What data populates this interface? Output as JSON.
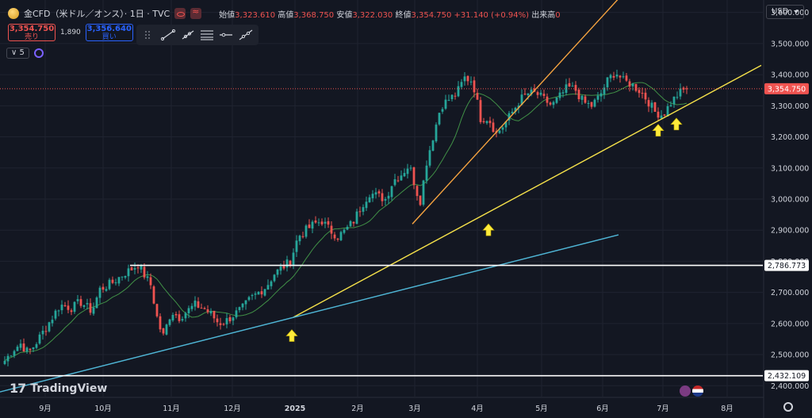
{
  "header": {
    "symbol": "金CFD（米ドル／オンス）· 1日 · TVC",
    "open_label": "始値",
    "open": "3,323.610",
    "high_label": "高値",
    "high": "3,368.750",
    "low_label": "安値",
    "low": "3,322.030",
    "close_label": "終値",
    "close": "3,354.750",
    "change": "+31.140 (+0.94%)",
    "volume_label": "出来高",
    "volume": "0"
  },
  "trade": {
    "sell_price": "3,354.750",
    "sell_label": "売り",
    "spread": "1,890",
    "buy_price": "3,356.640",
    "buy_label": "買い"
  },
  "indicator_count": "5",
  "currency": "USD",
  "watermark": "TradingView",
  "colors": {
    "background": "#131722",
    "up": "#26a69a",
    "down": "#ef5350",
    "ma": "#4caf50",
    "orange_line": "#f7a440",
    "yellow_line": "#f5e14a",
    "blue_line": "#4fb6d6",
    "level_line": "#ffffff",
    "arrow": "#ffeb3b"
  },
  "chart_data": {
    "type": "candlestick",
    "x_ticks": [
      "9月",
      "10月",
      "11月",
      "12月",
      "2025",
      "2月",
      "3月",
      "4月",
      "5月",
      "6月",
      "7月",
      "8月"
    ],
    "y_ticks": [
      2400,
      2500,
      2600,
      2700,
      2800,
      2900,
      3000,
      3100,
      3200,
      3300,
      3400,
      3500,
      3600
    ],
    "y_tick_labels": [
      "2,400.000",
      "2,500.000",
      "2,600.000",
      "2,700.000",
      "2,800.000",
      "2,900.000",
      "3,000.000",
      "3,100.000",
      "3,200.000",
      "3,300.000",
      "3,400.000",
      "3,500.000",
      "3,600.000"
    ],
    "ylim": [
      2365,
      3640
    ],
    "last_price": 3354.75,
    "last_price_label": "3,354.750",
    "horizontal_levels": [
      {
        "value": 2786.773,
        "label": "2,786.773"
      },
      {
        "value": 2432.109,
        "label": "2,432.109"
      }
    ],
    "keypoints": [
      [
        0,
        2480
      ],
      [
        10,
        2515
      ],
      [
        20,
        2535
      ],
      [
        30,
        2505
      ],
      [
        40,
        2540
      ],
      [
        50,
        2580
      ],
      [
        60,
        2620
      ],
      [
        70,
        2660
      ],
      [
        85,
        2650
      ],
      [
        95,
        2670
      ],
      [
        110,
        2640
      ],
      [
        120,
        2710
      ],
      [
        135,
        2730
      ],
      [
        150,
        2760
      ],
      [
        160,
        2775
      ],
      [
        168,
        2790
      ],
      [
        175,
        2760
      ],
      [
        185,
        2720
      ],
      [
        190,
        2640
      ],
      [
        195,
        2590
      ],
      [
        200,
        2560
      ],
      [
        210,
        2640
      ],
      [
        220,
        2620
      ],
      [
        230,
        2640
      ],
      [
        240,
        2660
      ],
      [
        250,
        2650
      ],
      [
        260,
        2630
      ],
      [
        270,
        2600
      ],
      [
        280,
        2610
      ],
      [
        290,
        2630
      ],
      [
        300,
        2650
      ],
      [
        310,
        2680
      ],
      [
        320,
        2700
      ],
      [
        330,
        2720
      ],
      [
        340,
        2760
      ],
      [
        350,
        2780
      ],
      [
        360,
        2800
      ],
      [
        370,
        2880
      ],
      [
        380,
        2900
      ],
      [
        390,
        2920
      ],
      [
        400,
        2930
      ],
      [
        410,
        2900
      ],
      [
        420,
        2880
      ],
      [
        430,
        2900
      ],
      [
        440,
        2930
      ],
      [
        450,
        2980
      ],
      [
        460,
        3020
      ],
      [
        470,
        3010
      ],
      [
        480,
        3000
      ],
      [
        490,
        3060
      ],
      [
        500,
        3080
      ],
      [
        510,
        3110
      ],
      [
        520,
        3020
      ],
      [
        525,
        2990
      ],
      [
        530,
        3100
      ],
      [
        540,
        3200
      ],
      [
        550,
        3300
      ],
      [
        560,
        3320
      ],
      [
        570,
        3340
      ],
      [
        580,
        3390
      ],
      [
        590,
        3380
      ],
      [
        600,
        3260
      ],
      [
        610,
        3260
      ],
      [
        620,
        3210
      ],
      [
        630,
        3240
      ],
      [
        640,
        3280
      ],
      [
        650,
        3320
      ],
      [
        660,
        3340
      ],
      [
        670,
        3340
      ],
      [
        680,
        3320
      ],
      [
        690,
        3300
      ],
      [
        700,
        3330
      ],
      [
        710,
        3360
      ],
      [
        720,
        3350
      ],
      [
        730,
        3310
      ],
      [
        740,
        3300
      ],
      [
        750,
        3330
      ],
      [
        760,
        3380
      ],
      [
        770,
        3410
      ],
      [
        780,
        3380
      ],
      [
        790,
        3370
      ],
      [
        800,
        3350
      ],
      [
        810,
        3320
      ],
      [
        820,
        3280
      ],
      [
        830,
        3270
      ],
      [
        840,
        3310
      ],
      [
        850,
        3340
      ],
      [
        860,
        3355
      ]
    ],
    "trend_lines": [
      {
        "color": "orange",
        "from": [
          520,
          2920
        ],
        "to": [
          800,
          3700
        ]
      },
      {
        "color": "yellow",
        "from": [
          370,
          2620
        ],
        "to": [
          960,
          3430
        ]
      },
      {
        "color": "blue",
        "from": [
          0,
          2380
        ],
        "to": [
          780,
          2885
        ]
      }
    ],
    "support_arrows": [
      [
        368,
        2560
      ],
      [
        616,
        2900
      ],
      [
        830,
        3220
      ],
      [
        853,
        3240
      ]
    ]
  }
}
